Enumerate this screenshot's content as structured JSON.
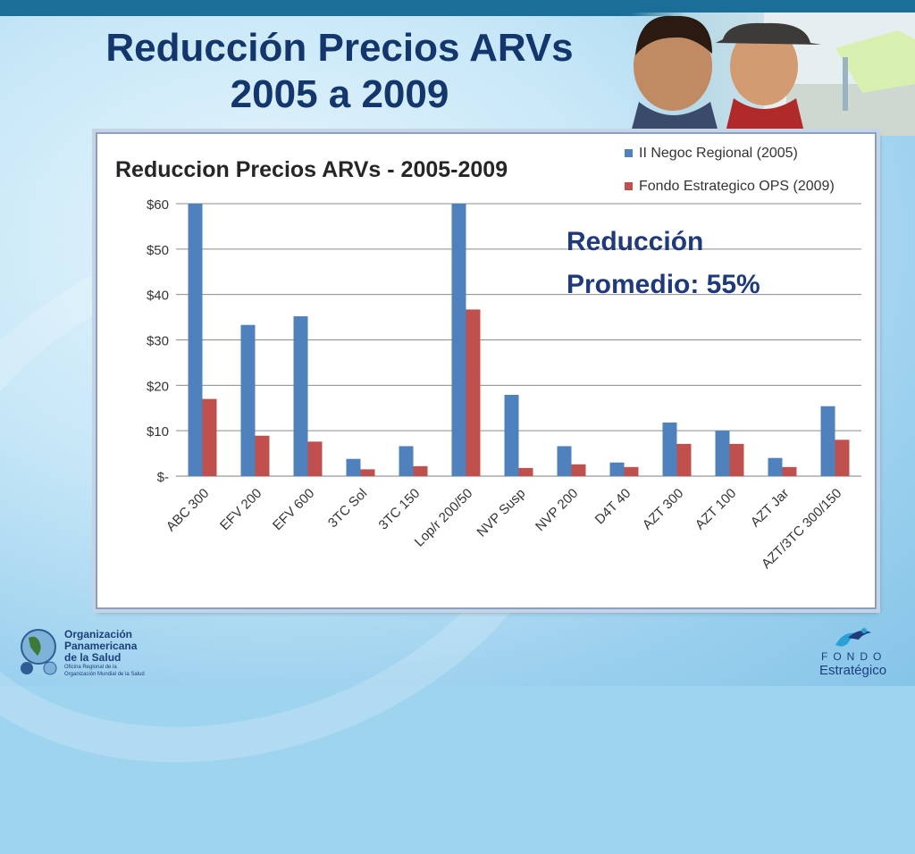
{
  "slide": {
    "title_line1": "Reducción Precios ARVs",
    "title_line2": "2005 a 2009"
  },
  "logos": {
    "ops_line1": "Organización",
    "ops_line2": "Panamericana",
    "ops_line3": "de la Salud",
    "ops_sub1": "Oficina Regional de la",
    "ops_sub2": "Organización Mundial de la Salud",
    "fondo_line1": "FONDO",
    "fondo_line2": "Estratégico"
  },
  "colors": {
    "series_2005": "#4f81bd",
    "series_2009": "#c0504d",
    "title": "#13366d"
  },
  "chart_data": {
    "type": "bar",
    "title": "Reduccion Precios ARVs - 2005-2009",
    "annotation_line1": "Reducción",
    "annotation_line2": "Promedio: 55%",
    "categories": [
      "ABC 300",
      "EFV 200",
      "EFV 600",
      "3TC Sol",
      "3TC 150",
      "Lop/r 200/50",
      "NVP Susp",
      "NVP 200",
      "D4T 40",
      "AZT 300",
      "AZT 100",
      "AZT Jar",
      "AZT/3TC 300/150"
    ],
    "series": [
      {
        "name": "II Negoc Regional (2005)",
        "values": [
          60,
          33.3,
          35.2,
          3.8,
          6.6,
          60,
          17.9,
          6.6,
          3.0,
          11.8,
          10.0,
          4.0,
          15.4
        ]
      },
      {
        "name": "Fondo Estrategico OPS (2009)",
        "values": [
          17,
          8.9,
          7.6,
          1.5,
          2.2,
          36.7,
          1.8,
          2.6,
          2.0,
          7.1,
          7.1,
          2.0,
          8.0
        ]
      }
    ],
    "ylim": [
      0,
      60
    ],
    "yticks": [
      "$-",
      "$10",
      "$20",
      "$30",
      "$40",
      "$50",
      "$60"
    ],
    "ytick_values": [
      0,
      10,
      20,
      30,
      40,
      50,
      60
    ],
    "grid": true,
    "legend_position": "top-right"
  }
}
